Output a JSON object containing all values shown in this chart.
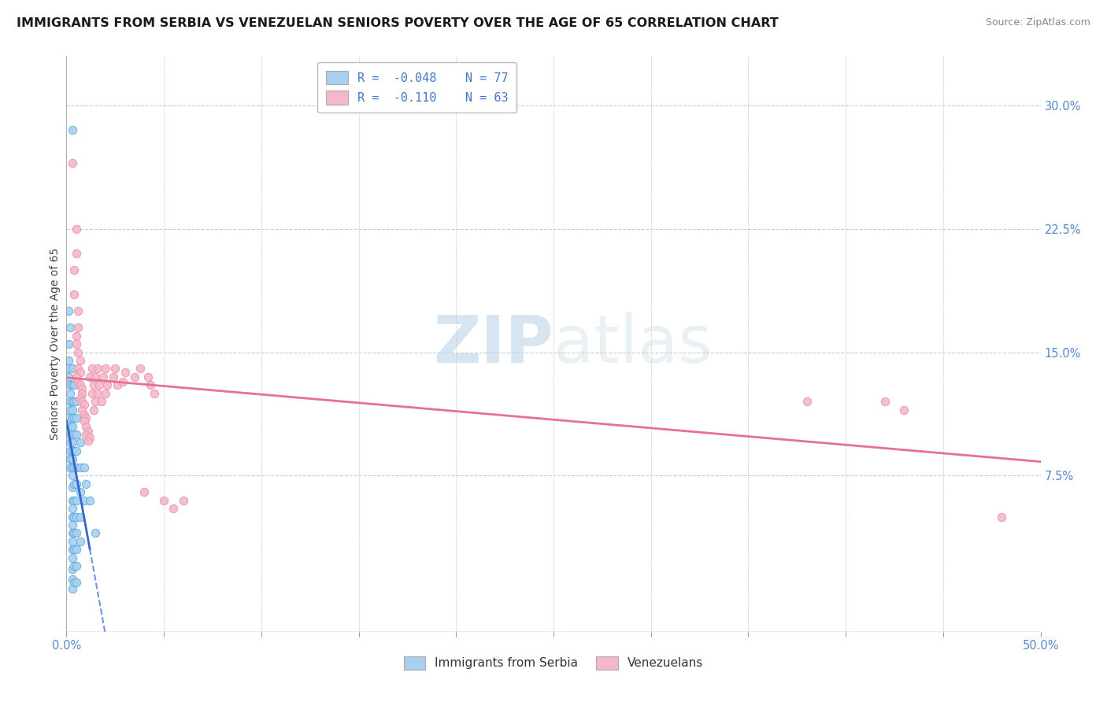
{
  "title": "IMMIGRANTS FROM SERBIA VS VENEZUELAN SENIORS POVERTY OVER THE AGE OF 65 CORRELATION CHART",
  "source": "Source: ZipAtlas.com",
  "ylabel": "Seniors Poverty Over the Age of 65",
  "legend_label1": "Immigrants from Serbia",
  "legend_label2": "Venezuelans",
  "legend_r1": "R =  -0.048",
  "legend_n1": "N = 77",
  "legend_r2": "R =  -0.110",
  "legend_n2": "N = 63",
  "right_ytick_vals": [
    0.3,
    0.225,
    0.15,
    0.075
  ],
  "right_ytick_labels": [
    "30.0%",
    "22.5%",
    "15.0%",
    "7.5%"
  ],
  "watermark_zip": "ZIP",
  "watermark_atlas": "atlas",
  "serbia_color": "#a8d0f0",
  "serbia_edge_color": "#6aaee0",
  "venezuela_color": "#f5b8c8",
  "venezuela_edge_color": "#e898b0",
  "serbia_line_color": "#3366cc",
  "venezuela_line_color": "#e87090",
  "serbia_scatter": [
    [
      0.003,
      0.285
    ],
    [
      0.001,
      0.175
    ],
    [
      0.002,
      0.165
    ],
    [
      0.001,
      0.155
    ],
    [
      0.001,
      0.145
    ],
    [
      0.001,
      0.14
    ],
    [
      0.001,
      0.135
    ],
    [
      0.002,
      0.13
    ],
    [
      0.002,
      0.125
    ],
    [
      0.002,
      0.12
    ],
    [
      0.002,
      0.115
    ],
    [
      0.001,
      0.11
    ],
    [
      0.002,
      0.105
    ],
    [
      0.002,
      0.1
    ],
    [
      0.002,
      0.095
    ],
    [
      0.002,
      0.09
    ],
    [
      0.002,
      0.085
    ],
    [
      0.002,
      0.08
    ],
    [
      0.003,
      0.14
    ],
    [
      0.003,
      0.13
    ],
    [
      0.003,
      0.12
    ],
    [
      0.003,
      0.115
    ],
    [
      0.003,
      0.11
    ],
    [
      0.003,
      0.105
    ],
    [
      0.003,
      0.1
    ],
    [
      0.003,
      0.095
    ],
    [
      0.003,
      0.09
    ],
    [
      0.003,
      0.085
    ],
    [
      0.003,
      0.08
    ],
    [
      0.003,
      0.075
    ],
    [
      0.003,
      0.068
    ],
    [
      0.003,
      0.06
    ],
    [
      0.003,
      0.055
    ],
    [
      0.003,
      0.05
    ],
    [
      0.003,
      0.045
    ],
    [
      0.003,
      0.04
    ],
    [
      0.003,
      0.035
    ],
    [
      0.003,
      0.03
    ],
    [
      0.003,
      0.025
    ],
    [
      0.003,
      0.018
    ],
    [
      0.003,
      0.012
    ],
    [
      0.003,
      0.006
    ],
    [
      0.004,
      0.13
    ],
    [
      0.004,
      0.12
    ],
    [
      0.004,
      0.11
    ],
    [
      0.004,
      0.1
    ],
    [
      0.004,
      0.09
    ],
    [
      0.004,
      0.08
    ],
    [
      0.004,
      0.07
    ],
    [
      0.004,
      0.06
    ],
    [
      0.004,
      0.05
    ],
    [
      0.004,
      0.04
    ],
    [
      0.004,
      0.03
    ],
    [
      0.004,
      0.02
    ],
    [
      0.004,
      0.01
    ],
    [
      0.005,
      0.12
    ],
    [
      0.005,
      0.11
    ],
    [
      0.005,
      0.1
    ],
    [
      0.005,
      0.09
    ],
    [
      0.005,
      0.08
    ],
    [
      0.005,
      0.07
    ],
    [
      0.005,
      0.06
    ],
    [
      0.005,
      0.05
    ],
    [
      0.005,
      0.04
    ],
    [
      0.005,
      0.03
    ],
    [
      0.005,
      0.02
    ],
    [
      0.005,
      0.01
    ],
    [
      0.007,
      0.095
    ],
    [
      0.007,
      0.08
    ],
    [
      0.007,
      0.065
    ],
    [
      0.007,
      0.05
    ],
    [
      0.007,
      0.035
    ],
    [
      0.009,
      0.08
    ],
    [
      0.009,
      0.06
    ],
    [
      0.01,
      0.07
    ],
    [
      0.012,
      0.06
    ],
    [
      0.015,
      0.04
    ]
  ],
  "venezuela_scatter": [
    [
      0.003,
      0.265
    ],
    [
      0.005,
      0.225
    ],
    [
      0.005,
      0.21
    ],
    [
      0.004,
      0.2
    ],
    [
      0.004,
      0.185
    ],
    [
      0.006,
      0.175
    ],
    [
      0.006,
      0.165
    ],
    [
      0.005,
      0.16
    ],
    [
      0.005,
      0.155
    ],
    [
      0.006,
      0.15
    ],
    [
      0.007,
      0.145
    ],
    [
      0.006,
      0.14
    ],
    [
      0.007,
      0.138
    ],
    [
      0.005,
      0.135
    ],
    [
      0.006,
      0.132
    ],
    [
      0.007,
      0.13
    ],
    [
      0.008,
      0.128
    ],
    [
      0.008,
      0.125
    ],
    [
      0.007,
      0.122
    ],
    [
      0.008,
      0.12
    ],
    [
      0.009,
      0.118
    ],
    [
      0.008,
      0.115
    ],
    [
      0.009,
      0.112
    ],
    [
      0.01,
      0.11
    ],
    [
      0.009,
      0.108
    ],
    [
      0.01,
      0.105
    ],
    [
      0.011,
      0.102
    ],
    [
      0.01,
      0.1
    ],
    [
      0.012,
      0.098
    ],
    [
      0.011,
      0.096
    ],
    [
      0.013,
      0.14
    ],
    [
      0.012,
      0.135
    ],
    [
      0.014,
      0.13
    ],
    [
      0.013,
      0.125
    ],
    [
      0.015,
      0.12
    ],
    [
      0.014,
      0.115
    ],
    [
      0.016,
      0.14
    ],
    [
      0.015,
      0.135
    ],
    [
      0.017,
      0.13
    ],
    [
      0.016,
      0.125
    ],
    [
      0.018,
      0.12
    ],
    [
      0.02,
      0.14
    ],
    [
      0.019,
      0.135
    ],
    [
      0.021,
      0.13
    ],
    [
      0.02,
      0.125
    ],
    [
      0.025,
      0.14
    ],
    [
      0.024,
      0.135
    ],
    [
      0.026,
      0.13
    ],
    [
      0.03,
      0.138
    ],
    [
      0.029,
      0.132
    ],
    [
      0.035,
      0.135
    ],
    [
      0.038,
      0.14
    ],
    [
      0.04,
      0.065
    ],
    [
      0.042,
      0.135
    ],
    [
      0.043,
      0.13
    ],
    [
      0.045,
      0.125
    ],
    [
      0.05,
      0.06
    ],
    [
      0.055,
      0.055
    ],
    [
      0.06,
      0.06
    ],
    [
      0.38,
      0.12
    ],
    [
      0.42,
      0.12
    ],
    [
      0.43,
      0.115
    ],
    [
      0.48,
      0.05
    ]
  ],
  "xlim": [
    0.0,
    0.5
  ],
  "ylim": [
    -0.02,
    0.33
  ],
  "background_color": "#ffffff",
  "grid_color": "#cccccc",
  "title_fontsize": 11.5,
  "axis_label_fontsize": 10,
  "tick_fontsize": 10.5
}
